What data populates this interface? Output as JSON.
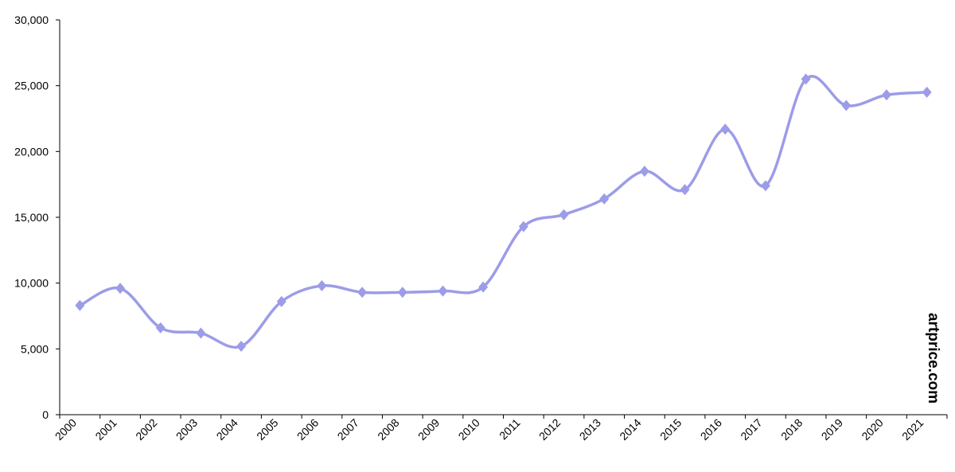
{
  "chart_data": {
    "type": "line",
    "categories": [
      "2000",
      "2001",
      "2002",
      "2003",
      "2004",
      "2005",
      "2006",
      "2007",
      "2008",
      "2009",
      "2010",
      "2011",
      "2012",
      "2013",
      "2014",
      "2015",
      "2016",
      "2017",
      "2018",
      "2019",
      "2020",
      "2021"
    ],
    "values": [
      8300,
      9600,
      6600,
      6200,
      5200,
      8600,
      9800,
      9300,
      9300,
      9400,
      9700,
      14300,
      15200,
      16400,
      18500,
      17100,
      21700,
      17400,
      25500,
      23500,
      24300,
      24500
    ],
    "color": "#9c9ce8",
    "ylim": [
      0,
      30000
    ],
    "yticks": [
      0,
      {
        "value": 5000,
        "label": "5,000"
      },
      {
        "value": 10000,
        "label": "10,000"
      },
      {
        "value": 15000,
        "label": "15,000"
      },
      {
        "value": 20000,
        "label": "20,000"
      },
      {
        "value": 25000,
        "label": "25,000"
      },
      {
        "value": 30000,
        "label": "30,000"
      }
    ],
    "watermark": "artprice.com"
  }
}
